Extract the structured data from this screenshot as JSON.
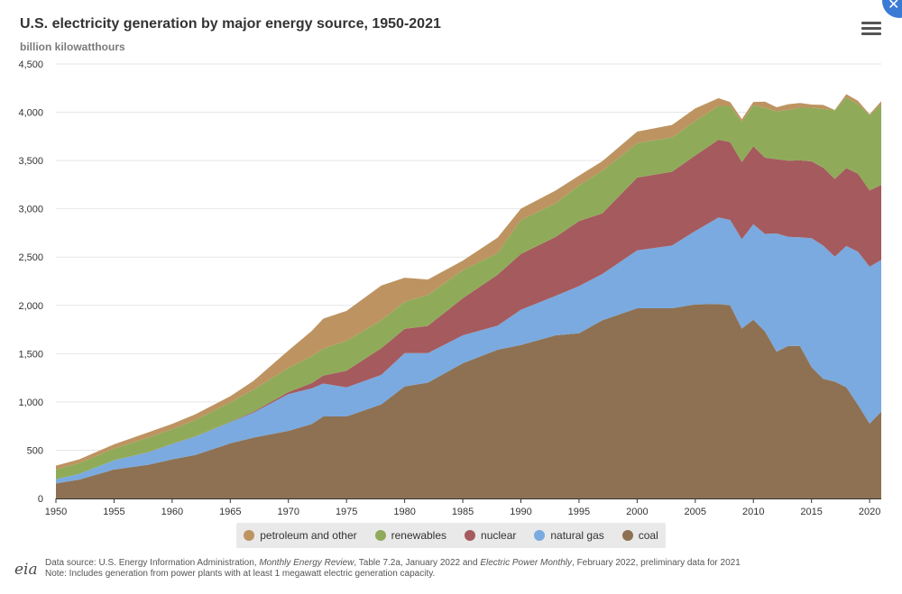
{
  "header": {
    "title": "U.S. electricity generation by major energy source, 1950-2021",
    "subtitle": "billion kilowatthours"
  },
  "icons": {
    "menu": "hamburger-menu-icon",
    "close": "close-icon"
  },
  "chart_data": {
    "type": "area",
    "stacked": true,
    "title": "U.S. electricity generation by major energy source, 1950-2021",
    "ylabel": "billion kilowatthours",
    "xlabel": "",
    "xlim": [
      1950,
      2021
    ],
    "ylim": [
      0,
      4500
    ],
    "x_ticks": [
      1950,
      1955,
      1960,
      1965,
      1970,
      1975,
      1980,
      1985,
      1990,
      1995,
      2000,
      2005,
      2010,
      2015,
      2020
    ],
    "x_tick_labels": [
      "1950",
      "1955",
      "1960",
      "1965",
      "1970",
      "1975",
      "1980",
      "1985",
      "1990",
      "1995",
      "2000",
      "2005",
      "2010",
      "2015",
      "2020"
    ],
    "y_ticks": [
      0,
      500,
      1000,
      1500,
      2000,
      2500,
      3000,
      3500,
      4000,
      4500
    ],
    "y_tick_labels": [
      "0",
      "500",
      "1,000",
      "1,500",
      "2,000",
      "2,500",
      "3,000",
      "3,500",
      "4,000",
      "4,500"
    ],
    "grid": true,
    "legend_position": "bottom",
    "x": [
      1950,
      1952,
      1955,
      1958,
      1960,
      1962,
      1965,
      1967,
      1970,
      1972,
      1973,
      1975,
      1978,
      1980,
      1982,
      1985,
      1988,
      1990,
      1993,
      1995,
      1997,
      2000,
      2003,
      2005,
      2007,
      2008,
      2009,
      2010,
      2011,
      2012,
      2013,
      2014,
      2015,
      2016,
      2017,
      2018,
      2019,
      2020,
      2021
    ],
    "series": [
      {
        "name": "coal",
        "color": "#8e7153",
        "values": [
          155,
          195,
          300,
          350,
          405,
          450,
          570,
          630,
          700,
          770,
          850,
          850,
          975,
          1160,
          1200,
          1400,
          1540,
          1590,
          1690,
          1710,
          1845,
          1970,
          1970,
          2010,
          2015,
          2000,
          1760,
          1850,
          1730,
          1520,
          1580,
          1580,
          1360,
          1240,
          1210,
          1150,
          970,
          775,
          900
        ]
      },
      {
        "name": "natural gas",
        "color": "#7aaadf",
        "values": [
          45,
          60,
          95,
          130,
          160,
          190,
          220,
          260,
          380,
          370,
          340,
          300,
          305,
          345,
          305,
          290,
          250,
          365,
          410,
          490,
          480,
          600,
          650,
          760,
          895,
          885,
          925,
          990,
          1010,
          1225,
          1130,
          1125,
          1335,
          1380,
          1295,
          1465,
          1585,
          1625,
          1570
        ]
      },
      {
        "name": "nuclear",
        "color": "#a55a5e",
        "values": [
          0,
          0,
          0,
          2,
          2,
          2,
          4,
          8,
          22,
          54,
          83,
          173,
          276,
          251,
          283,
          384,
          527,
          577,
          610,
          673,
          628,
          754,
          764,
          782,
          806,
          806,
          799,
          807,
          790,
          769,
          789,
          797,
          797,
          806,
          805,
          807,
          809,
          790,
          778
        ]
      },
      {
        "name": "renewables",
        "color": "#8fab59",
        "values": [
          100,
          110,
          120,
          150,
          150,
          170,
          200,
          230,
          250,
          280,
          280,
          310,
          290,
          280,
          320,
          290,
          225,
          350,
          350,
          370,
          440,
          356,
          355,
          358,
          350,
          375,
          415,
          425,
          515,
          495,
          525,
          545,
          555,
          610,
          710,
          730,
          720,
          780,
          835
        ]
      },
      {
        "name": "petroleum and other",
        "color": "#bd9461",
        "values": [
          40,
          40,
          45,
          55,
          55,
          60,
          65,
          90,
          180,
          260,
          310,
          310,
          360,
          250,
          160,
          100,
          160,
          120,
          130,
          100,
          100,
          120,
          130,
          130,
          80,
          40,
          30,
          35,
          65,
          43,
          60,
          50,
          33,
          40,
          4,
          35,
          34,
          10,
          32
        ]
      }
    ]
  },
  "legend": {
    "items": [
      {
        "label": "petroleum and other",
        "color": "#bd9461"
      },
      {
        "label": "renewables",
        "color": "#8fab59"
      },
      {
        "label": "nuclear",
        "color": "#a55a5e"
      },
      {
        "label": "natural gas",
        "color": "#7aaadf"
      },
      {
        "label": "coal",
        "color": "#8e7153"
      }
    ]
  },
  "footer": {
    "logo_text": "eia",
    "source_prefix": "Data source: U.S. Energy Information Administration, ",
    "source_pub1": "Monthly Energy Review",
    "source_mid": ", Table 7.2a, January 2022 and ",
    "source_pub2": "Electric Power Monthly",
    "source_suffix": ", February 2022, preliminary data for 2021",
    "note": "Note: Includes generation from power plants with at least 1 megawatt electric generation capacity."
  }
}
